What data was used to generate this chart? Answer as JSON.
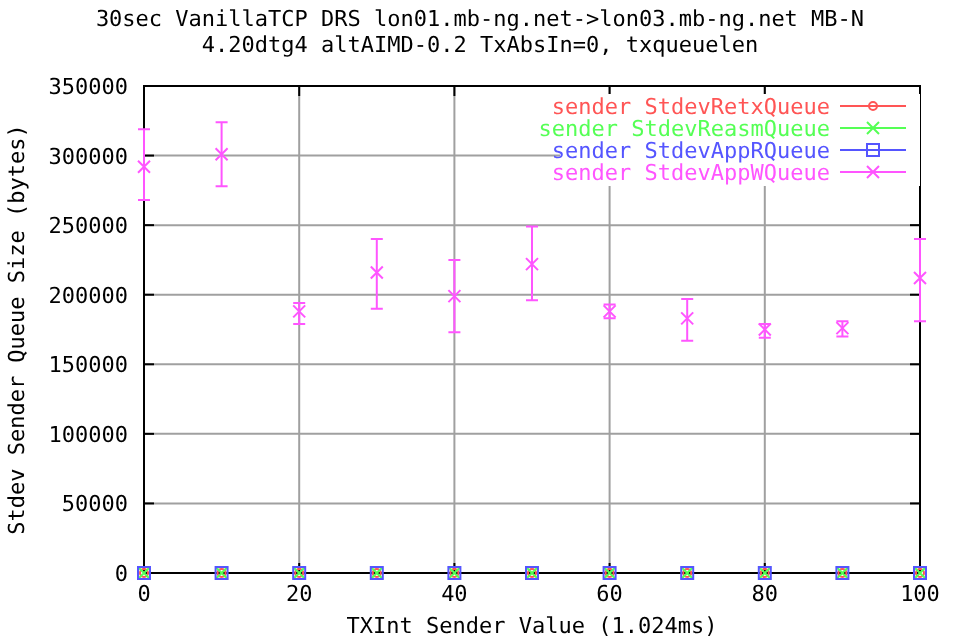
{
  "chart_data": {
    "type": "scatter",
    "title": "30sec VanillaTCP DRS lon01.mb-ng.net->lon03.mb-ng.net MB-N",
    "subtitle": "4.20dtg4 altAIMD-0.2 TxAbsIn=0, txqueuelen",
    "xlabel": "TXInt Sender Value (1.024ms)",
    "ylabel": "Stdev Sender Queue Size (bytes)",
    "x": [
      0,
      10,
      20,
      30,
      40,
      50,
      60,
      70,
      80,
      90,
      100
    ],
    "xlim": [
      0,
      100
    ],
    "xticks": [
      0,
      20,
      40,
      60,
      80,
      100
    ],
    "ylim": [
      0,
      350000
    ],
    "yticks": [
      0,
      50000,
      100000,
      150000,
      200000,
      250000,
      300000,
      350000
    ],
    "grid": true,
    "legend": "top right",
    "series": [
      {
        "name": "sender StdevRetxQueue",
        "color": "#ff5555",
        "marker": "circle",
        "values": [
          0,
          0,
          0,
          0,
          0,
          0,
          0,
          0,
          0,
          0,
          0
        ]
      },
      {
        "name": "sender StdevReasmQueue",
        "color": "#55ff55",
        "marker": "cross",
        "values": [
          0,
          0,
          0,
          0,
          0,
          0,
          0,
          0,
          0,
          0,
          0
        ]
      },
      {
        "name": "sender StdevAppRQueue",
        "color": "#5555ff",
        "marker": "square",
        "values": [
          0,
          0,
          0,
          0,
          0,
          0,
          0,
          0,
          0,
          0,
          0
        ]
      },
      {
        "name": "sender StdevAppWQueue",
        "color": "#ff55ff",
        "marker": "cross",
        "values": [
          292000,
          301000,
          188000,
          216000,
          199000,
          222000,
          188000,
          183000,
          175000,
          176000,
          212000
        ],
        "errors": [
          [
            268000,
            319000
          ],
          [
            278000,
            324000
          ],
          [
            179000,
            194000
          ],
          [
            190000,
            240000
          ],
          [
            173000,
            225000
          ],
          [
            196000,
            249000
          ],
          [
            183000,
            193000
          ],
          [
            167000,
            197000
          ],
          [
            169000,
            179000
          ],
          [
            170000,
            181000
          ],
          [
            181000,
            240000
          ]
        ]
      }
    ]
  }
}
